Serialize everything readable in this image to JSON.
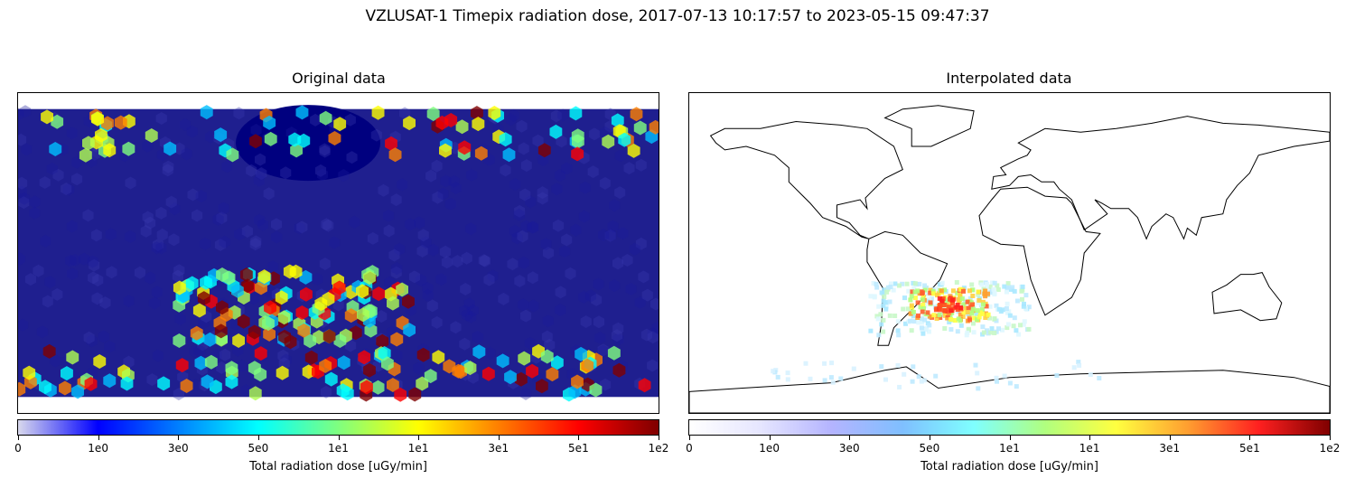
{
  "figure": {
    "suptitle": "VZLUSAT-1 Timepix radiation dose, 2017-07-13 10:17:57 to 2023-05-15 09:47:37"
  },
  "chart_data": [
    {
      "type": "heatmap",
      "title": "Original data",
      "plot": "hexbin map of total radiation dose (lon/lat)",
      "xlim": [
        -180,
        180
      ],
      "ylim": [
        -90,
        90
      ],
      "background_level": "0 (dark blue, low dose)",
      "regions": [
        {
          "name": "South Atlantic Anomaly",
          "lon_range": [
            -90,
            40
          ],
          "lat_range": [
            -50,
            -10
          ],
          "level": "high"
        },
        {
          "name": "Northern polar belt",
          "lon_range": [
            -180,
            180
          ],
          "lat_range": [
            55,
            80
          ],
          "level": "medium-high"
        },
        {
          "name": "Southern polar belt",
          "lon_range": [
            -180,
            180
          ],
          "lat_range": [
            -80,
            -55
          ],
          "level": "medium-high"
        }
      ],
      "colorbar": {
        "label": "Total radiation dose [uGy/min]",
        "ticks": [
          "0",
          "1e0",
          "3e0",
          "5e0",
          "1e1",
          "1e1",
          "3e1",
          "5e1",
          "1e2"
        ],
        "colormap": [
          "#00007f",
          "#0000ff",
          "#007fff",
          "#00ffff",
          "#7fff7f",
          "#ffff00",
          "#ff7f00",
          "#ff0000",
          "#7f0000"
        ]
      }
    },
    {
      "type": "heatmap",
      "title": "Interpolated data",
      "plot": "interpolated radiation dose over world coastline map",
      "xlim": [
        -180,
        180
      ],
      "ylim": [
        -90,
        90
      ],
      "regions": [
        {
          "name": "South Atlantic Anomaly core",
          "lon": -35,
          "lat": -28,
          "level": "approx. 3e1-5e1"
        },
        {
          "name": "South Atlantic Anomaly halo",
          "lon_range": [
            -80,
            10
          ],
          "lat_range": [
            -45,
            -15
          ],
          "level": "approx. 3e0-1e1"
        },
        {
          "name": "Antarctic edge speckles",
          "lon_range": [
            -140,
            60
          ],
          "lat_range": [
            -75,
            -60
          ],
          "level": "approx. 1e0-3e0"
        }
      ],
      "colorbar": {
        "label": "Total radiation dose [uGy/min]",
        "ticks": [
          "0",
          "1e0",
          "3e0",
          "5e0",
          "1e1",
          "1e1",
          "3e1",
          "5e1",
          "1e2"
        ],
        "colormap": [
          "#ffffff",
          "#e6e6ff",
          "#b4b4ff",
          "#7fbfff",
          "#7fffff",
          "#b0ff7f",
          "#ffff40",
          "#ff9f30",
          "#ff2020",
          "#7f0000"
        ]
      }
    }
  ]
}
